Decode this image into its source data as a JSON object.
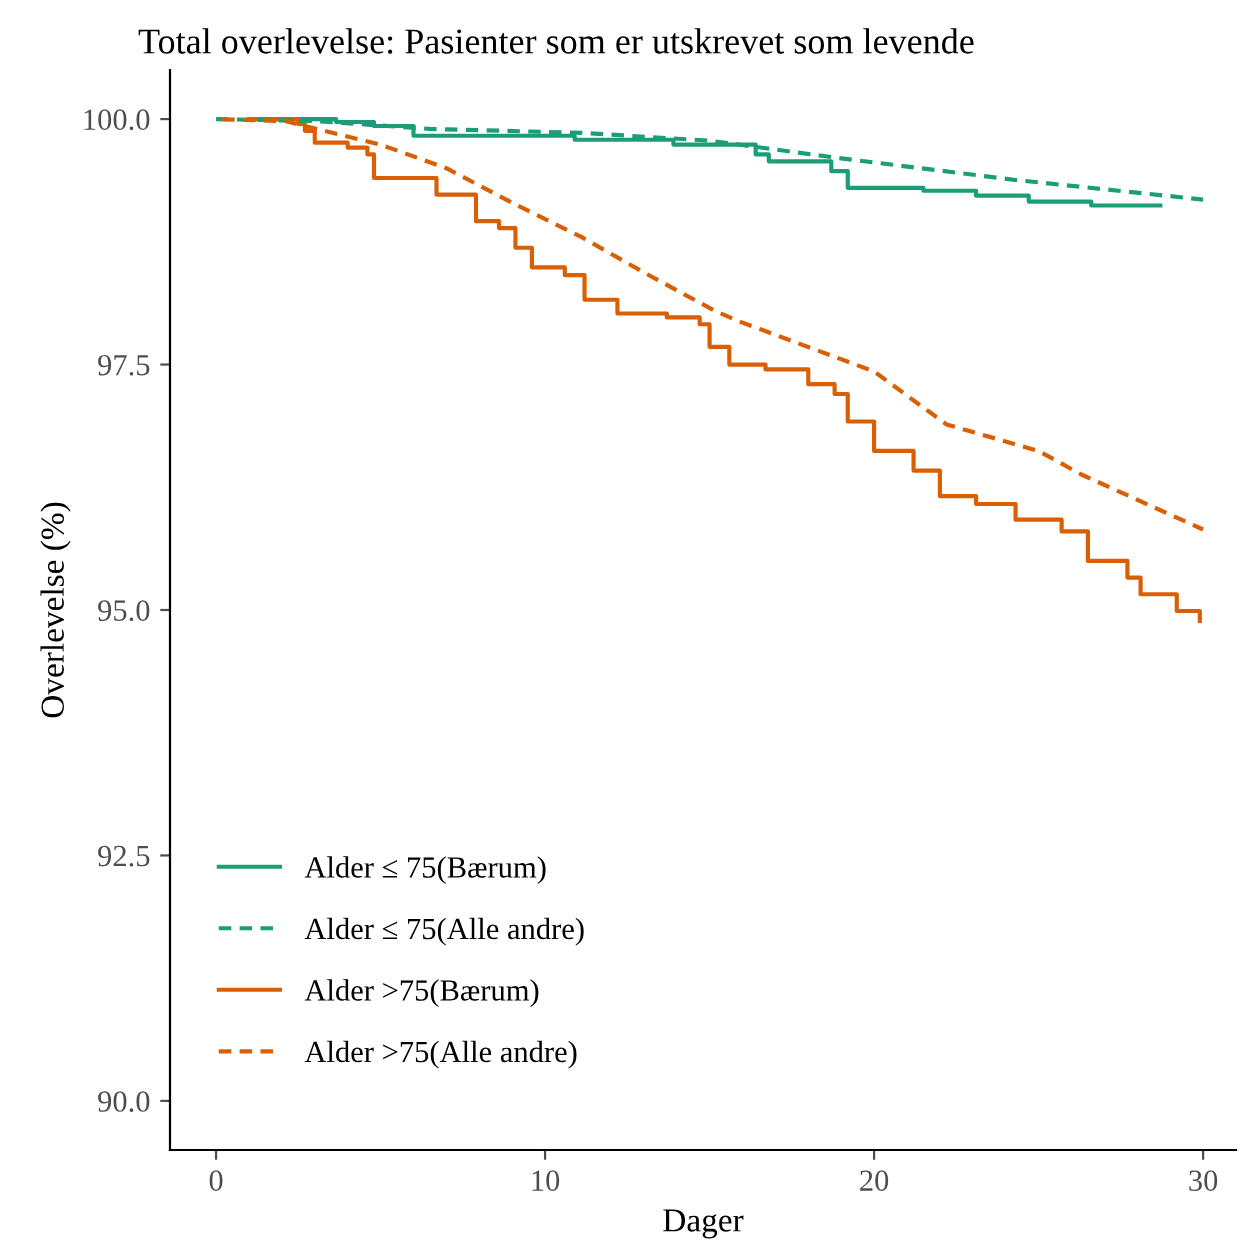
{
  "chart_data": {
    "type": "step",
    "title": "Total overlevelse: Pasienter som er utskrevet som levende",
    "xlabel": "Dager",
    "ylabel": "Overlevelse (%)",
    "xlim": [
      -1.4,
      31.0
    ],
    "ylim": [
      89.5,
      100.5
    ],
    "xticks": [
      0,
      10,
      20,
      30
    ],
    "yticks": [
      {
        "value": 90,
        "label": "90.0"
      },
      {
        "value": 92.5,
        "label": "92.5"
      },
      {
        "value": 95,
        "label": "95.0"
      },
      {
        "value": 97.5,
        "label": "97.5"
      },
      {
        "value": 100,
        "label": "100.0"
      }
    ],
    "grid": false,
    "legend": "bottom left",
    "series": [
      {
        "name": "Alder ≤ 75(Bærum)",
        "color": "#1b9e77",
        "line_style": "solid",
        "x": [
          1,
          3.65,
          4.8,
          6.0,
          10.9,
          13.9,
          16.4,
          16.8,
          18.7,
          19.2,
          19.7,
          21.5,
          23.1,
          24.7,
          26.6,
          28.7
        ],
        "values": [
          100,
          99.97,
          99.93,
          99.83,
          99.79,
          99.74,
          99.64,
          99.57,
          99.47,
          99.3,
          99.3,
          99.27,
          99.22,
          99.16,
          99.12,
          99.12
        ]
      },
      {
        "name": "Alder ≤ 75(Alle andre)",
        "color": "#1b9e77",
        "line_style": "dashed",
        "type": "line",
        "x": [
          0,
          3.0,
          6.5,
          11.1,
          15.0,
          19.0,
          24.3,
          30.0
        ],
        "values": [
          100,
          99.98,
          99.9,
          99.86,
          99.78,
          99.6,
          99.38,
          99.18
        ]
      },
      {
        "name": "Alder >75(Bærum)",
        "color": "#d95f02",
        "line_style": "solid",
        "x": [
          1,
          2.5,
          2.7,
          3.0,
          4.0,
          4.6,
          4.8,
          6.7,
          7.9,
          8.6,
          9.1,
          9.6,
          10.6,
          11.2,
          12.2,
          13.7,
          14.7,
          15.0,
          15.6,
          16.7,
          18.0,
          18.8,
          19.2,
          20.0,
          21.2,
          22.0,
          23.1,
          24.3,
          25.7,
          26.5,
          27.7,
          28.1,
          29.2,
          29.9
        ],
        "values": [
          100,
          99.95,
          99.88,
          99.76,
          99.71,
          99.64,
          99.4,
          99.23,
          98.96,
          98.89,
          98.69,
          98.49,
          98.41,
          98.16,
          98.02,
          97.98,
          97.91,
          97.68,
          97.5,
          97.45,
          97.3,
          97.2,
          96.92,
          96.62,
          96.42,
          96.16,
          96.08,
          95.92,
          95.8,
          95.5,
          95.33,
          95.16,
          94.99,
          94.89
        ]
      },
      {
        "name": "Alder >75(Alle andre)",
        "color": "#d95f02",
        "line_style": "dashed",
        "type": "line",
        "x": [
          0,
          2.1,
          3.3,
          5.0,
          7.0,
          9.1,
          11.1,
          13.1,
          15.2,
          15.9,
          20.0,
          22.2,
          25.0,
          26.3,
          30.0
        ],
        "values": [
          100,
          99.98,
          99.88,
          99.74,
          99.5,
          99.13,
          98.8,
          98.42,
          98.04,
          97.94,
          97.43,
          96.89,
          96.62,
          96.38,
          95.82
        ]
      }
    ]
  }
}
